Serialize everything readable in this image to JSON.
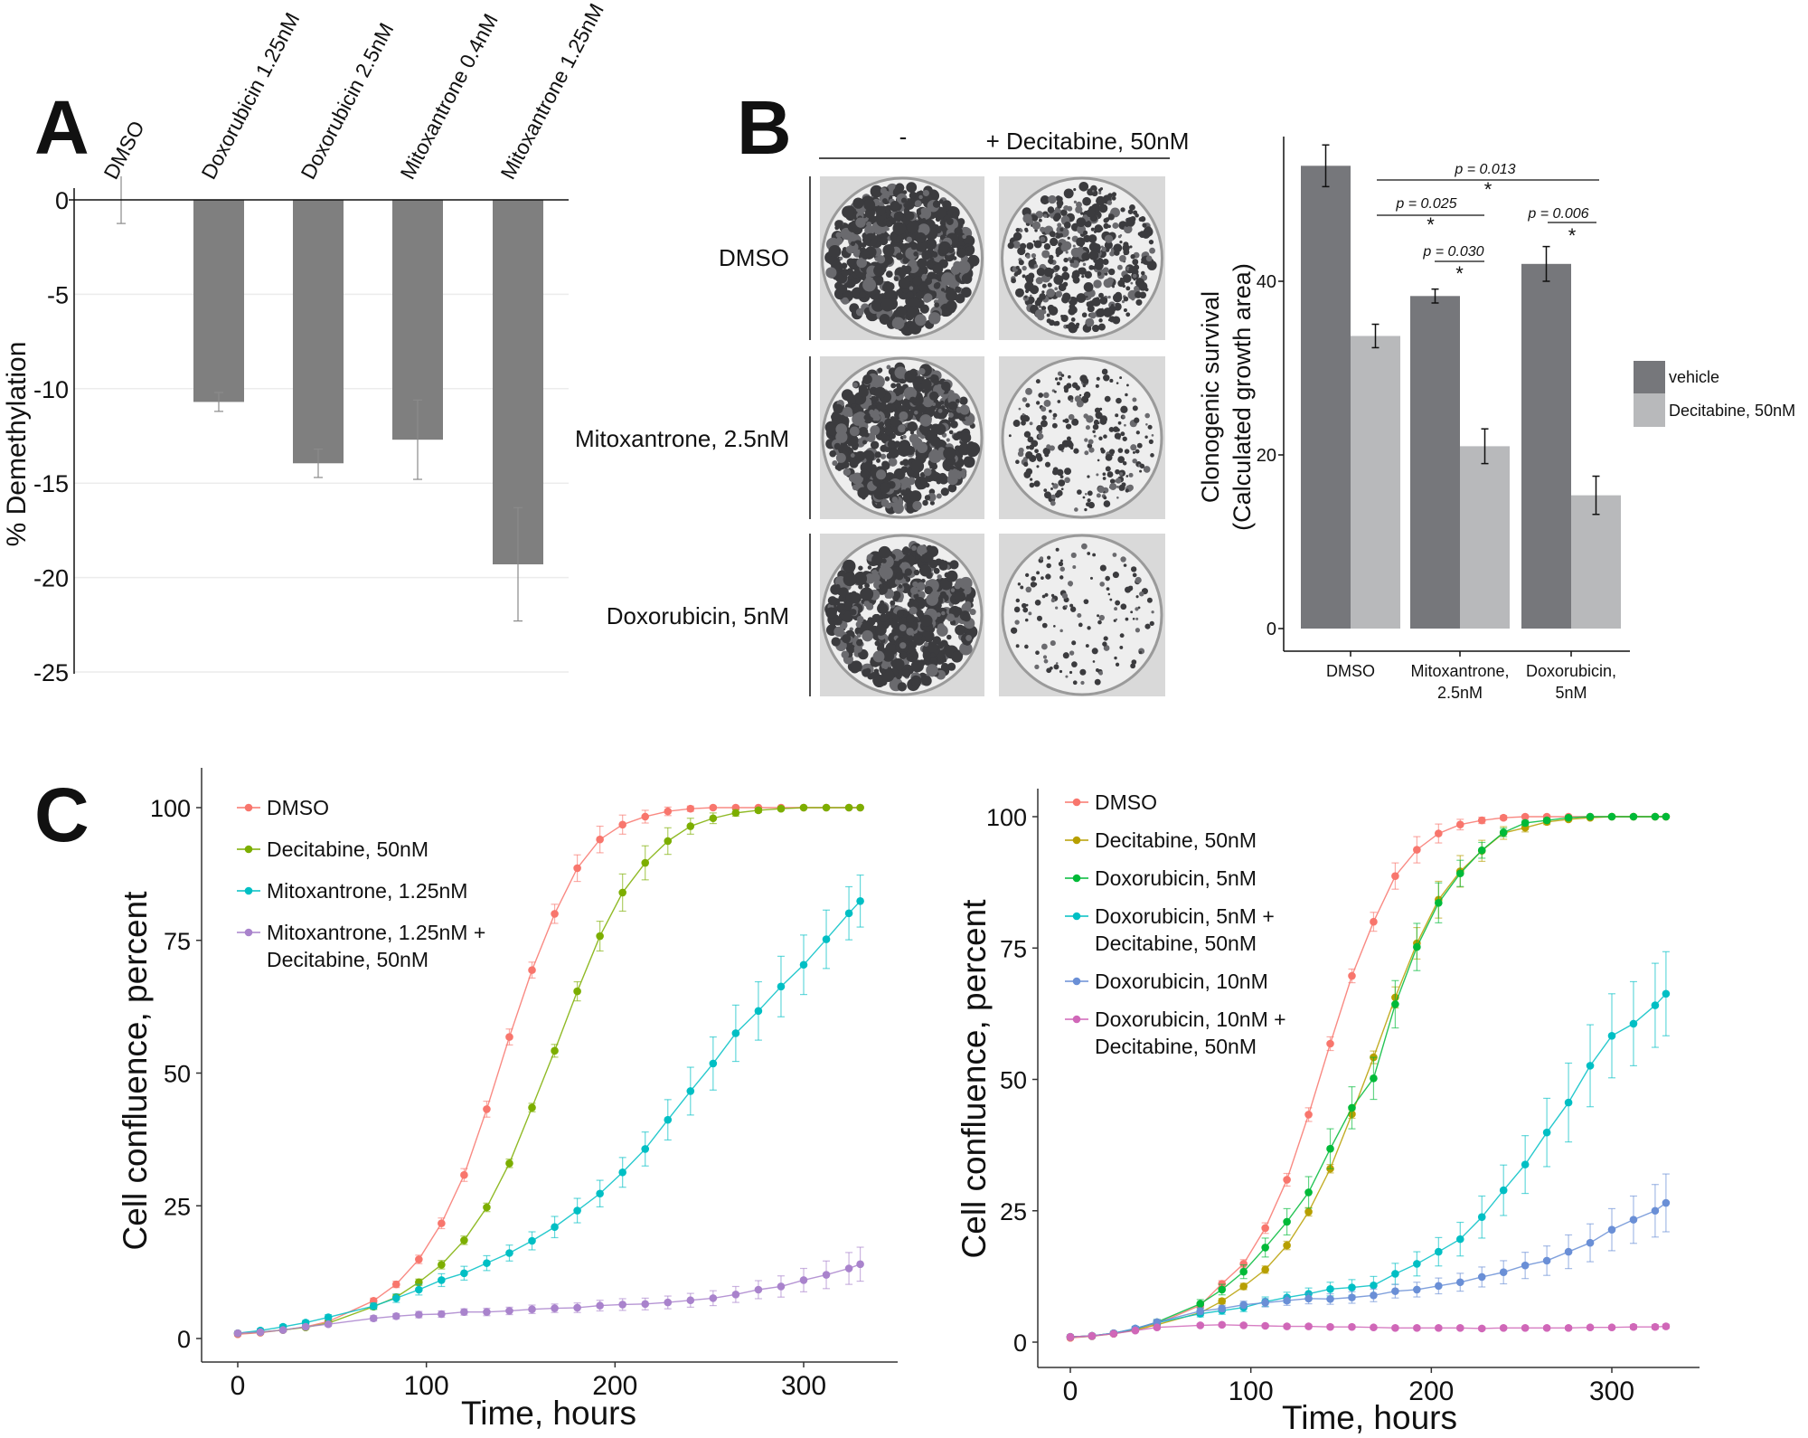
{
  "panels": {
    "a": "A",
    "b": "B",
    "c": "C"
  },
  "chart_data": [
    {
      "id": "A",
      "type": "bar",
      "ylabel": "% Demethylation",
      "categories": [
        "DMSO",
        "Doxorubicin 1.25nM",
        "Doxorubicin 2.5nM",
        "Mitoxantrone 0.4nM",
        "Mitoxantrone 1.25nM"
      ],
      "values": [
        0,
        -10.7,
        -13.95,
        -12.7,
        -19.3
      ],
      "errors": [
        1.25,
        0.5,
        0.75,
        2.1,
        3.0
      ],
      "ylim": [
        -25,
        0
      ],
      "yticks": [
        "0",
        "-5",
        "-10",
        "-15",
        "-20",
        "-25"
      ],
      "ytick_values": [
        0,
        -5,
        -10,
        -15,
        -20,
        -25
      ],
      "grid": true,
      "bar_color": "#7f7f7f"
    },
    {
      "id": "B-images",
      "type": "image-grid",
      "column_headers": [
        "-",
        "+ Decitabine, 50nM"
      ],
      "row_labels": [
        "DMSO",
        "Mitoxantrone, 2.5nM",
        "Doxorubicin, 5nM"
      ]
    },
    {
      "id": "B",
      "type": "bar",
      "ylabel_lines": [
        "Clonogenic survival",
        "(Calculated growth area)"
      ],
      "categories": [
        "DMSO",
        "Mitoxantrone, 2.5nM",
        "Doxorubicin, 5nM"
      ],
      "category_lines": [
        [
          "DMSO"
        ],
        [
          "Mitoxantrone,",
          "2.5nM"
        ],
        [
          "Doxorubicin,",
          "5nM"
        ]
      ],
      "series": [
        {
          "name": "vehicle",
          "color": "#76777b",
          "values": [
            53.3,
            38.3,
            42.0
          ],
          "errors": [
            2.4,
            0.8,
            2.0
          ]
        },
        {
          "name": "Decitabine, 50nM",
          "color": "#b8b9bb",
          "values": [
            33.7,
            21.0,
            15.35
          ],
          "errors": [
            1.35,
            2.0,
            2.2
          ]
        }
      ],
      "ylim": [
        0,
        56
      ],
      "yticks": [
        "0",
        "20",
        "40"
      ],
      "ytick_values": [
        0,
        20,
        40
      ],
      "legend_position": "right",
      "annotations": [
        {
          "text": "p = 0.013",
          "star": "*"
        },
        {
          "text": "p = 0.025",
          "star": "*"
        },
        {
          "text": "p = 0.030",
          "star": "*"
        },
        {
          "text": "p = 0.006",
          "star": "*"
        }
      ]
    },
    {
      "id": "C-left",
      "type": "line",
      "xlabel": "Time, hours",
      "ylabel": "Cell confluence, percent",
      "xlim": [
        -20,
        350
      ],
      "ylim": [
        -3,
        105
      ],
      "xticks": [
        "0",
        "100",
        "200",
        "300"
      ],
      "xtick_values": [
        0,
        100,
        200,
        300
      ],
      "yticks": [
        "0",
        "25",
        "50",
        "75",
        "100"
      ],
      "ytick_values": [
        0,
        25,
        50,
        75,
        100
      ],
      "legend_position": "top-left",
      "x": [
        0,
        12,
        24,
        36,
        48,
        60,
        72,
        84,
        96,
        108,
        120,
        132,
        144,
        156,
        168,
        180,
        192,
        204,
        216,
        228,
        240,
        252,
        264,
        276,
        288,
        300,
        312,
        324,
        330
      ],
      "series": [
        {
          "name": "DMSO",
          "color": "#F8766D",
          "values": [
            0.8,
            1.1,
            1.6,
            2.2,
            3.2,
            null,
            7.1,
            10.2,
            14.9,
            21.7,
            30.8,
            43.2,
            56.8,
            69.4,
            80,
            88.6,
            94,
            96.8,
            98.3,
            99.3,
            99.8,
            100,
            100,
            100,
            100,
            100,
            100,
            100,
            100
          ],
          "errors": [
            0.3,
            0.3,
            0.3,
            0.3,
            0.4,
            null,
            0.5,
            0.6,
            0.8,
            1,
            1.2,
            1.5,
            1.5,
            1.5,
            1.8,
            2.5,
            2.5,
            1.8,
            1.2,
            0.8,
            0.5,
            0.3,
            0.3,
            0.2,
            0.2,
            0.2,
            0.2,
            0.2,
            0.2
          ]
        },
        {
          "name": "Decitabine, 50nM",
          "color": "#7CAE00",
          "values": [
            1,
            1.2,
            1.6,
            2.1,
            2.9,
            null,
            6,
            7.8,
            10.6,
            13.9,
            18.5,
            24.7,
            33,
            43.5,
            54.2,
            65.4,
            75.8,
            84,
            89.6,
            93.7,
            96.5,
            98,
            99,
            99.5,
            99.8,
            100,
            100,
            100,
            100
          ],
          "errors": [
            0.3,
            0.3,
            0.3,
            0.3,
            0.4,
            null,
            0.5,
            0.5,
            0.6,
            0.8,
            0.8,
            0.8,
            0.8,
            0.8,
            1.2,
            1.8,
            2.8,
            3.5,
            3.2,
            2.5,
            1.5,
            1,
            0.6,
            0.4,
            0.3,
            0.2,
            0.2,
            0.2,
            0.2
          ]
        },
        {
          "name": "Mitoxantrone, 1.25nM",
          "color": "#00BFC4",
          "values": [
            1,
            1.5,
            2.2,
            3,
            4,
            null,
            6.1,
            7.6,
            9.2,
            11,
            12.3,
            14.2,
            16.1,
            18.4,
            21,
            24.1,
            27.3,
            31.3,
            35.7,
            41.2,
            46.6,
            51.8,
            57.5,
            61.7,
            66.3,
            70.4,
            75.2,
            80.1,
            82.4
          ],
          "errors": [
            0.3,
            0.3,
            0.4,
            0.4,
            0.5,
            null,
            0.6,
            0.8,
            1,
            1.2,
            1.3,
            1.4,
            1.5,
            1.7,
            2,
            2.3,
            2.5,
            2.8,
            3.2,
            3.8,
            4.5,
            5,
            5.3,
            5.5,
            5.7,
            5.6,
            5.5,
            5,
            4.9
          ]
        },
        {
          "name": "Mitoxantrone, 1.25nM + Decitabine, 50nM",
          "name_lines": [
            "Mitoxantrone, 1.25nM +",
            "Decitabine, 50nM"
          ],
          "color": "#A983CC",
          "values": [
            1,
            1.2,
            1.6,
            2.2,
            2.7,
            null,
            3.8,
            4.2,
            4.5,
            4.6,
            5,
            5,
            5.2,
            5.5,
            5.7,
            5.8,
            6.2,
            6.4,
            6.5,
            6.8,
            7.2,
            7.6,
            8.3,
            9.2,
            9.8,
            11,
            12,
            13.2,
            14
          ],
          "errors": [
            0.3,
            0.3,
            0.3,
            0.3,
            0.4,
            null,
            0.5,
            0.5,
            0.6,
            0.6,
            0.6,
            0.7,
            0.7,
            0.8,
            0.8,
            0.9,
            1,
            1.1,
            1.1,
            1.2,
            1.3,
            1.4,
            1.5,
            1.7,
            2,
            2.2,
            2.6,
            3,
            3.2
          ]
        }
      ]
    },
    {
      "id": "C-right",
      "type": "line",
      "xlabel": "Time, hours",
      "ylabel": "Cell confluence, percent",
      "xlim": [
        -20,
        350
      ],
      "ylim": [
        -3,
        105
      ],
      "xticks": [
        "0",
        "100",
        "200",
        "300"
      ],
      "xtick_values": [
        0,
        100,
        200,
        300
      ],
      "yticks": [
        "0",
        "25",
        "50",
        "75",
        "100"
      ],
      "ytick_values": [
        0,
        25,
        50,
        75,
        100
      ],
      "legend_position": "top-left",
      "x": [
        0,
        12,
        24,
        36,
        48,
        60,
        72,
        84,
        96,
        108,
        120,
        132,
        144,
        156,
        168,
        180,
        192,
        204,
        216,
        228,
        240,
        252,
        264,
        276,
        288,
        300,
        312,
        324,
        330
      ],
      "series": [
        {
          "name": "DMSO",
          "color": "#F8766D",
          "values": [
            0.8,
            1.1,
            1.6,
            2.5,
            3.5,
            null,
            7,
            11.1,
            14.9,
            21.7,
            30.9,
            43.3,
            56.8,
            69.7,
            80,
            88.7,
            93.7,
            96.8,
            98.5,
            99.3,
            99.8,
            100,
            100,
            100,
            100,
            100,
            100,
            100,
            100
          ],
          "errors": [
            0.3,
            0.3,
            0.3,
            0.3,
            0.4,
            null,
            0.5,
            0.6,
            0.8,
            1,
            1.2,
            1.3,
            1.3,
            1.3,
            1.8,
            2.5,
            2.5,
            1.8,
            1,
            0.6,
            0.4,
            0.3,
            0.3,
            0.2,
            0.2,
            0.2,
            0.2,
            0.2,
            0.2
          ]
        },
        {
          "name": "Decitabine, 50nM",
          "color": "#B79F00",
          "values": [
            1,
            1.2,
            1.6,
            2.3,
            3.3,
            null,
            5.6,
            7.8,
            10.6,
            13.8,
            18.4,
            24.8,
            33,
            43.4,
            54.2,
            65.6,
            75.9,
            84.2,
            89.6,
            93.5,
            96.9,
            97.9,
            99,
            99.5,
            99.8,
            100,
            100,
            100,
            100
          ],
          "errors": [
            0.3,
            0.3,
            0.3,
            0.3,
            0.4,
            null,
            0.5,
            0.5,
            0.6,
            0.7,
            0.8,
            0.8,
            0.8,
            0.8,
            1.2,
            2,
            3,
            3.5,
            3,
            2,
            1.2,
            0.8,
            0.5,
            0.3,
            0.2,
            0.2,
            0.2,
            0.2,
            0.2
          ]
        },
        {
          "name": "Doxorubicin, 5nM",
          "color": "#00BA38",
          "values": [
            1,
            1.2,
            1.7,
            2.5,
            3.8,
            null,
            7.3,
            10,
            13.4,
            18,
            22.9,
            28.5,
            36.8,
            44.6,
            50.2,
            64.3,
            75.2,
            83.6,
            89.2,
            93.6,
            97,
            98.8,
            99.3,
            99.8,
            100,
            100,
            100,
            100,
            100
          ],
          "errors": [
            0.3,
            0.3,
            0.3,
            0.4,
            0.5,
            null,
            0.8,
            1,
            1.3,
            1.8,
            2.5,
            3,
            3.8,
            4,
            4,
            4.5,
            4.5,
            3.8,
            2.5,
            1.5,
            0.8,
            0.5,
            0.3,
            0.2,
            0.2,
            0.2,
            0.2,
            0.2,
            0.2
          ]
        },
        {
          "name": "Doxorubicin, 5nM + Decitabine, 50nM",
          "name_lines": [
            "Doxorubicin, 5nM +",
            "Decitabine, 50nM"
          ],
          "color": "#00BFC4",
          "values": [
            1,
            1.2,
            1.7,
            2.6,
            3.7,
            null,
            5.4,
            6,
            6.6,
            7.7,
            8.5,
            9.2,
            10.1,
            10.4,
            10.8,
            13,
            14.9,
            17.2,
            19.6,
            23.8,
            28.9,
            33.8,
            39.9,
            45.6,
            52.6,
            58.3,
            60.6,
            64.1,
            66.3
          ],
          "errors": [
            0.3,
            0.3,
            0.3,
            0.4,
            0.5,
            null,
            0.6,
            0.7,
            0.8,
            0.9,
            1,
            1.1,
            1.3,
            1.5,
            1.7,
            2,
            2.3,
            2.7,
            3.2,
            4,
            4.8,
            5.5,
            6.5,
            7.5,
            7.8,
            8,
            8,
            8,
            8
          ]
        },
        {
          "name": "Doxorubicin, 10nM",
          "color": "#6A8FD6",
          "values": [
            1,
            1.2,
            1.7,
            2.6,
            3.8,
            null,
            5.9,
            6.4,
            7.1,
            7.5,
            7.9,
            8.3,
            8.2,
            8.5,
            8.9,
            9.7,
            10,
            10.7,
            11.4,
            12.4,
            13.3,
            14.6,
            15.5,
            17.2,
            18.9,
            21.4,
            23.3,
            25,
            26.5
          ],
          "errors": [
            0.3,
            0.3,
            0.3,
            0.4,
            0.5,
            null,
            0.6,
            0.6,
            0.7,
            0.8,
            0.9,
            1,
            1,
            1.1,
            1.2,
            1.3,
            1.4,
            1.5,
            1.7,
            1.9,
            2.2,
            2.5,
            2.8,
            3.2,
            3.6,
            4,
            4.5,
            5,
            5.5
          ]
        },
        {
          "name": "Doxorubicin, 10nM + Decitabine, 50nM",
          "name_lines": [
            "Doxorubicin, 10nM +",
            "Decitabine, 50nM"
          ],
          "color": "#D067B8",
          "values": [
            1,
            1.2,
            1.6,
            2.2,
            2.8,
            null,
            3.2,
            3.3,
            3.2,
            3.1,
            3,
            3,
            2.9,
            2.9,
            2.8,
            2.7,
            2.7,
            2.7,
            2.7,
            2.6,
            2.7,
            2.7,
            2.7,
            2.7,
            2.8,
            2.8,
            2.9,
            2.9,
            3
          ],
          "errors": [
            0.2,
            0.2,
            0.2,
            0.2,
            0.3,
            null,
            0.3,
            0.3,
            0.3,
            0.3,
            0.3,
            0.3,
            0.3,
            0.3,
            0.3,
            0.3,
            0.3,
            0.3,
            0.3,
            0.3,
            0.3,
            0.3,
            0.3,
            0.3,
            0.3,
            0.3,
            0.4,
            0.4,
            0.4
          ]
        }
      ]
    }
  ]
}
